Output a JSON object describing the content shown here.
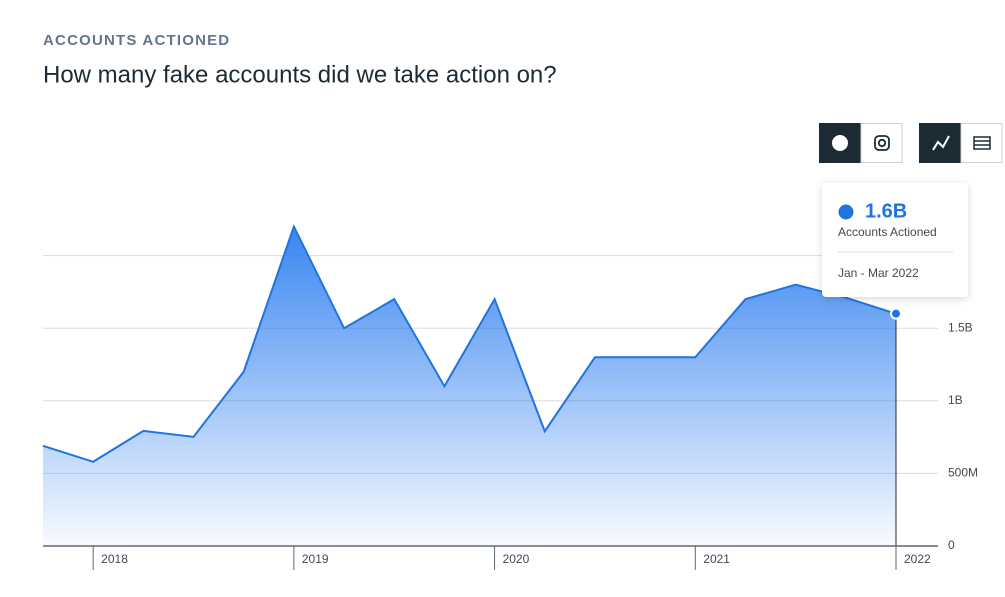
{
  "header": {
    "eyebrow": "ACCOUNTS ACTIONED",
    "title": "How many fake accounts did we take action on?"
  },
  "chart_data": {
    "type": "area",
    "categories": [
      null,
      "2018",
      null,
      null,
      null,
      "2019",
      null,
      null,
      null,
      "2020",
      null,
      null,
      null,
      "2021",
      null,
      null,
      null,
      "2022"
    ],
    "series": [
      {
        "name": "Accounts Actioned",
        "color": "#1f74e0",
        "values": [
          690,
          580,
          793,
          752,
          1200,
          2200,
          1500,
          1700,
          1100,
          1700,
          790,
          1300,
          1300,
          1300,
          1700,
          1800,
          1710,
          1600
        ]
      }
    ],
    "ylim": [
      0,
      2500
    ],
    "yticks": [
      0,
      {
        "value": 500,
        "label": "500M"
      },
      {
        "value": 1000,
        "label": "1B"
      },
      {
        "value": 1500,
        "label": "1.5B"
      }
    ],
    "grid_lines": [
      500,
      1000,
      1500,
      2000
    ],
    "tooltip": {
      "value": "1.6B",
      "label": "Accounts Actioned",
      "period": "Jan - Mar 2022"
    }
  }
}
